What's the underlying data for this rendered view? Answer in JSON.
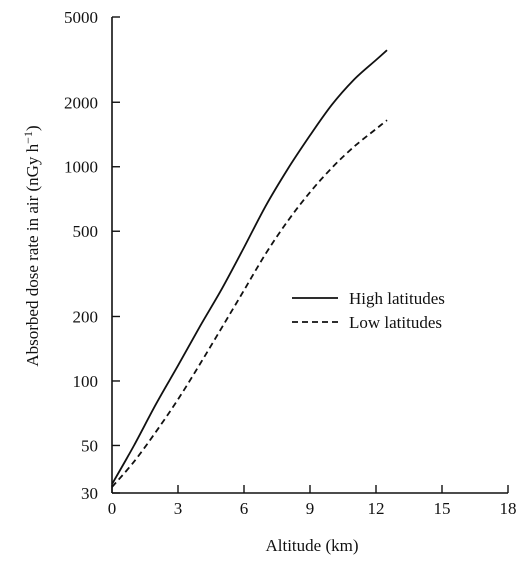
{
  "chart_data": {
    "type": "line",
    "xlabel": "Altitude (km)",
    "ylabel": "Absorbed dose rate in air (nGy h",
    "ylabel_superscript": "−1",
    "ylabel_close": ")",
    "xlim": [
      0,
      18
    ],
    "ylim": [
      30,
      5000
    ],
    "yscale": "log",
    "grid": false,
    "legend_position": "center-right",
    "x_ticks": [
      0,
      3,
      6,
      9,
      12,
      15,
      18
    ],
    "x_tick_labels": [
      "0",
      "3",
      "6",
      "9",
      "12",
      "15",
      "18"
    ],
    "y_ticks": [
      30,
      50,
      100,
      200,
      500,
      1000,
      2000,
      5000
    ],
    "y_tick_labels": [
      "30",
      "50",
      "100",
      "200",
      "500",
      "1000",
      "2000",
      "5000"
    ],
    "series": [
      {
        "name": "High latitudes",
        "line_style": "solid",
        "x": [
          0,
          1,
          2,
          3,
          4,
          5,
          6,
          7,
          8,
          9,
          10,
          11,
          12,
          12.5
        ],
        "y": [
          33,
          50,
          78,
          118,
          180,
          270,
          420,
          660,
          980,
          1400,
          1950,
          2550,
          3150,
          3500
        ]
      },
      {
        "name": "Low latitudes",
        "line_style": "dashed",
        "x": [
          0,
          1,
          2,
          3,
          4,
          5,
          6,
          7,
          8,
          9,
          10,
          11,
          12,
          12.5
        ],
        "y": [
          32,
          42,
          58,
          82,
          120,
          178,
          265,
          395,
          560,
          760,
          990,
          1240,
          1500,
          1650
        ]
      }
    ]
  },
  "colors": {
    "line": "#111111",
    "axis": "#111111",
    "background": "#ffffff"
  }
}
